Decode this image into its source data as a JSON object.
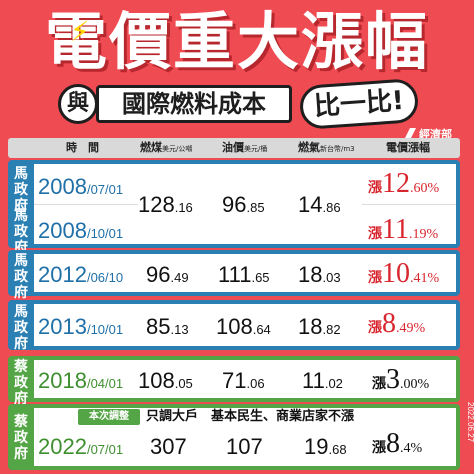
{
  "title": "電價重大漲幅",
  "subtitle_prefix": "與",
  "subtitle": "國際燃料成本",
  "compare": "比一比!",
  "logo": "經濟部",
  "date_stamp": "2022.06.27",
  "headers": {
    "time": "時　間",
    "coal": "燃煤",
    "coal_unit": "美元/公噸",
    "oil": "油價",
    "oil_unit": "美元/桶",
    "gas": "燃氣",
    "gas_unit": "新台幣/m3",
    "rate": "電價漲幅"
  },
  "rows": [
    {
      "party": "馬政府",
      "year": "2008",
      "md": "/07/01",
      "coal_i": "128",
      "coal_d": ".16",
      "oil_i": "96",
      "oil_d": ".85",
      "gas_i": "14",
      "gas_d": ".86",
      "rate_prefix": "漲",
      "rate_i": "12",
      "rate_d": ".60%"
    },
    {
      "party": "馬政府",
      "year": "2008",
      "md": "/10/01",
      "rate_prefix": "漲",
      "rate_i": "11",
      "rate_d": ".19%"
    },
    {
      "party": "馬政府",
      "year": "2012",
      "md": "/06/10",
      "coal_i": "96",
      "coal_d": ".49",
      "oil_i": "111",
      "oil_d": ".65",
      "gas_i": "18",
      "gas_d": ".03",
      "rate_prefix": "漲",
      "rate_i": "10",
      "rate_d": ".41%"
    },
    {
      "party": "馬政府",
      "year": "2013",
      "md": "/10/01",
      "coal_i": "85",
      "coal_d": ".13",
      "oil_i": "108",
      "oil_d": ".64",
      "gas_i": "18",
      "gas_d": ".82",
      "rate_prefix": "漲",
      "rate_i": "8",
      "rate_d": ".49%"
    },
    {
      "party": "蔡政府",
      "year": "2018",
      "md": "/04/01",
      "coal_i": "108",
      "coal_d": ".05",
      "oil_i": "71",
      "oil_d": ".06",
      "gas_i": "11",
      "gas_d": ".02",
      "rate_prefix": "漲",
      "rate_i": "3",
      "rate_d": ".00%"
    },
    {
      "party": "蔡政府",
      "year": "2022",
      "md": "/07/01",
      "coal_i": "307",
      "coal_d": "",
      "oil_i": "107",
      "oil_d": "",
      "gas_i": "19",
      "gas_d": ".68",
      "rate_prefix": "漲",
      "rate_i": "8",
      "rate_d": ".4",
      "rate_pct": "%"
    }
  ],
  "note": {
    "tag": "本次調整",
    "text": "只調大戶　基本民生、商業店家不漲"
  },
  "colors": {
    "background": "#ef4b52",
    "ma": "#2b80b3",
    "tsai": "#54a545",
    "rate": "#d8262e"
  }
}
